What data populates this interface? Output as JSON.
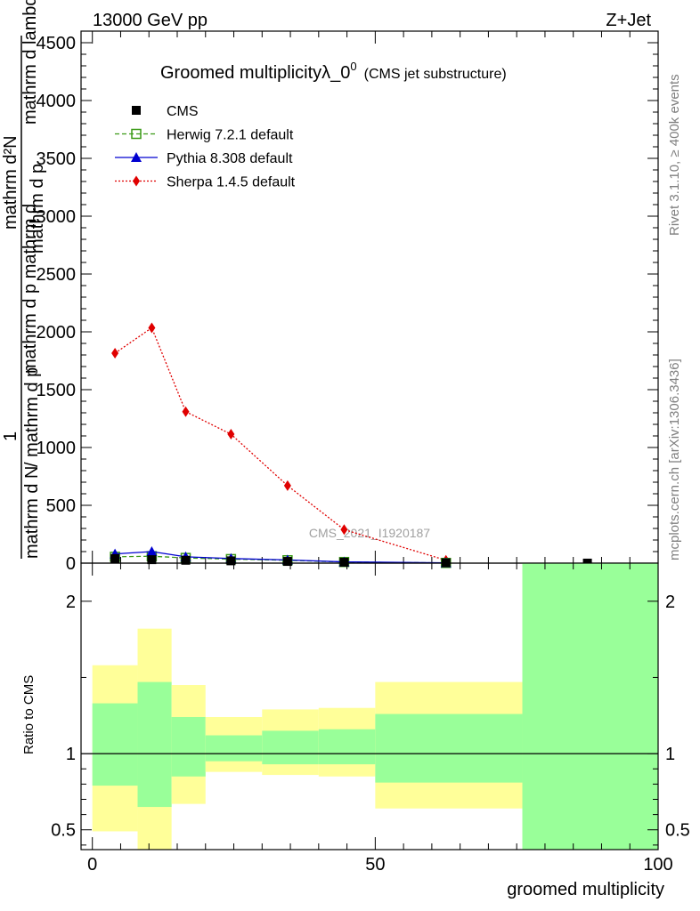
{
  "header": {
    "energy_label": "13000 GeV pp",
    "process_label": "Z+Jet"
  },
  "side_labels": {
    "rivet": "Rivet 3.1.10, ≥ 400k events",
    "mcplots": "mcplots.cern.ch [arXiv:1306.3436]"
  },
  "chart_data": [
    {
      "panel": "main",
      "type": "line",
      "title": "Groomed multiplicityλ_0",
      "title_sup": "0",
      "subtitle": "(CMS jet substructure)",
      "ylabel_top": "mathrm d",
      "ylabel_top_sup": "2",
      "ylabel_top_end": "N",
      "ylabel_lines": [
        "mathrm d p",
        "mathrm d p",
        "mathrm d lambda"
      ],
      "ylabel_lines_sub": [
        "T",
        "T",
        ""
      ],
      "ylabel_lines_mid": [
        "mathrm d p",
        "mathrm d p mathrm d"
      ],
      "ylabel_one": "1",
      "ylabel_bottom": "mathrm d N",
      "ylabel_bottom_mid": "/ mathrm d p",
      "ylabel_bottom_sub": "T",
      "ylabel_full_top": "mathrm d²N",
      "ylabel_full_top_2": "mathrm d p",
      "ylabel_full_top_3": "mathrm d lambda",
      "ylabel_full_mid": "mathrm d p mathrm d",
      "ylabel_full_bottom": "mathrm d N",
      "ylabel_full_bottom_2": "/ mathrm d p",
      "watermark": "CMS_2021_I1920187",
      "xlim": [
        -2,
        100
      ],
      "ylim": [
        0,
        4600
      ],
      "yticks": [
        0,
        500,
        1000,
        1500,
        2000,
        2500,
        3000,
        3500,
        4000,
        4500
      ],
      "ytick_labels": [
        "0",
        "500",
        "1000",
        "1500",
        "2000",
        "2500",
        "3000",
        "3500",
        "4000",
        "4500"
      ],
      "legend_position": "top-left",
      "series": [
        {
          "name": "CMS",
          "color": "#000000",
          "marker": "square",
          "x": [
            4,
            10.5,
            16.5,
            24.5,
            34.5,
            44.5,
            62.5,
            87.5
          ],
          "y": [
            40,
            30,
            25,
            20,
            15,
            8,
            3,
            0.3
          ]
        },
        {
          "name": "Herwig 7.2.1 default",
          "color": "#3a9a16",
          "marker": "open-square",
          "dash": "5,3",
          "x": [
            4,
            10.5,
            16.5,
            24.5,
            34.5,
            44.5,
            62.5
          ],
          "y": [
            55,
            60,
            45,
            35,
            25,
            10,
            2
          ]
        },
        {
          "name": "Pythia 8.308 default",
          "color": "#0000d0",
          "marker": "triangle",
          "dash": "",
          "x": [
            4,
            10.5,
            16.5,
            24.5,
            34.5,
            44.5,
            62.5
          ],
          "y": [
            80,
            100,
            55,
            40,
            28,
            11,
            3
          ]
        },
        {
          "name": "Sherpa 1.4.5 default",
          "color": "#e00000",
          "marker": "diamond",
          "dash": "2,2",
          "x": [
            4,
            10.5,
            16.5,
            24.5,
            34.5,
            44.5,
            62.5
          ],
          "y": [
            1815,
            2035,
            1310,
            1115,
            670,
            290,
            25
          ]
        }
      ]
    },
    {
      "panel": "ratio",
      "type": "area",
      "ylabel": "Ratio to CMS",
      "xlabel": "groomed multiplicity",
      "xlim": [
        -2,
        100
      ],
      "ylim": [
        0.37,
        2.25
      ],
      "yticks": [
        0.5,
        1,
        2
      ],
      "ytick_labels": [
        "0.5",
        "1",
        "2"
      ],
      "xticks": [
        0,
        50,
        100
      ],
      "xtick_labels": [
        "0",
        "50",
        "100"
      ],
      "reference_line": 1,
      "bands": [
        {
          "x0": 0,
          "x1": 8,
          "yellow": [
            0.49,
            1.58
          ],
          "green": [
            0.79,
            1.33
          ]
        },
        {
          "x0": 8,
          "x1": 14,
          "yellow": [
            0.37,
            1.82
          ],
          "green": [
            0.65,
            1.47
          ]
        },
        {
          "x0": 14,
          "x1": 20,
          "yellow": [
            0.67,
            1.45
          ],
          "green": [
            0.85,
            1.24
          ]
        },
        {
          "x0": 20,
          "x1": 30,
          "yellow": [
            0.88,
            1.24
          ],
          "green": [
            0.95,
            1.12
          ]
        },
        {
          "x0": 30,
          "x1": 40,
          "yellow": [
            0.86,
            1.29
          ],
          "green": [
            0.93,
            1.15
          ]
        },
        {
          "x0": 40,
          "x1": 50,
          "yellow": [
            0.85,
            1.3
          ],
          "green": [
            0.93,
            1.16
          ]
        },
        {
          "x0": 50,
          "x1": 76,
          "yellow": [
            0.64,
            1.47
          ],
          "green": [
            0.81,
            1.26
          ]
        },
        {
          "x0": 76,
          "x1": 100,
          "yellow": [
            0.37,
            2.25
          ],
          "green": [
            0.37,
            2.25
          ]
        }
      ],
      "band_colors": {
        "yellow": "#ffff99",
        "green": "#99ff99"
      }
    }
  ]
}
